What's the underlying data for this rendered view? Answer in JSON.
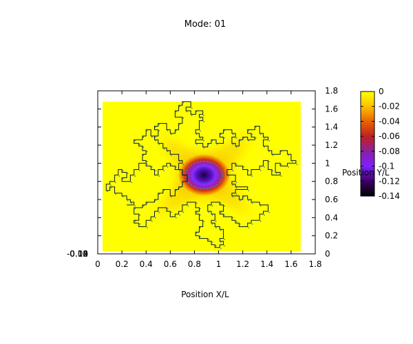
{
  "chart_data": {
    "type": "heatmap",
    "title": "Mode: 01",
    "xlabel": "Position X/L",
    "ylabel": "Position Y/L",
    "xlim": [
      0,
      1.8
    ],
    "ylim": [
      0,
      1.8
    ],
    "x_ticks": [
      "0",
      "0.2",
      "0.4",
      "0.6",
      "0.8",
      "1",
      "1.2",
      "1.4",
      "1.6",
      "1.8"
    ],
    "y_ticks": [
      "0",
      "0.2",
      "0.4",
      "0.6",
      "0.8",
      "1",
      "1.2",
      "1.4",
      "1.6",
      "1.8"
    ],
    "overlapping_tick_labels": [
      "-0.14",
      "-0.12",
      "-0.10",
      "-0.08"
    ],
    "colorbar": {
      "range": [
        -0.14,
        0
      ],
      "ticks": [
        "0",
        "-0.02",
        "-0.04",
        "-0.06",
        "-0.08",
        "-0.1",
        "-0.12",
        "-0.14"
      ],
      "colors": [
        "#000000",
        "#3a0060",
        "#7f1fff",
        "#8a1fa8",
        "#c02020",
        "#e86000",
        "#ffc200",
        "#ffff00"
      ]
    },
    "field": {
      "domain_x": [
        0.04,
        1.68
      ],
      "domain_y": [
        0.03,
        1.68
      ],
      "min_value": -0.14,
      "min_location": [
        0.88,
        0.87
      ],
      "background_value": 0
    },
    "boundary_polyline_xy": [
      [
        0.67,
        1.64
      ],
      [
        0.7,
        1.64
      ],
      [
        0.7,
        1.68
      ],
      [
        0.77,
        1.68
      ],
      [
        0.77,
        1.62
      ],
      [
        0.73,
        1.62
      ],
      [
        0.73,
        1.58
      ],
      [
        0.77,
        1.58
      ],
      [
        0.77,
        1.54
      ],
      [
        0.81,
        1.54
      ],
      [
        0.81,
        1.58
      ],
      [
        0.87,
        1.58
      ],
      [
        0.87,
        1.54
      ],
      [
        0.84,
        1.54
      ],
      [
        0.84,
        1.51
      ],
      [
        0.87,
        1.51
      ],
      [
        0.87,
        1.47
      ],
      [
        0.84,
        1.47
      ],
      [
        0.84,
        1.37
      ],
      [
        0.81,
        1.37
      ],
      [
        0.81,
        1.33
      ],
      [
        0.84,
        1.33
      ],
      [
        0.84,
        1.29
      ],
      [
        0.87,
        1.29
      ],
      [
        0.87,
        1.26
      ],
      [
        0.81,
        1.26
      ],
      [
        0.81,
        1.22
      ],
      [
        0.87,
        1.22
      ],
      [
        0.87,
        1.18
      ],
      [
        0.91,
        1.18
      ],
      [
        0.91,
        1.22
      ],
      [
        0.94,
        1.22
      ],
      [
        0.94,
        1.26
      ],
      [
        0.98,
        1.26
      ],
      [
        0.98,
        1.22
      ],
      [
        1.04,
        1.22
      ],
      [
        1.04,
        1.29
      ],
      [
        1.01,
        1.29
      ],
      [
        1.01,
        1.33
      ],
      [
        1.04,
        1.33
      ],
      [
        1.04,
        1.37
      ],
      [
        1.11,
        1.37
      ],
      [
        1.11,
        1.33
      ],
      [
        1.14,
        1.33
      ],
      [
        1.14,
        1.29
      ],
      [
        1.11,
        1.29
      ],
      [
        1.11,
        1.22
      ],
      [
        1.14,
        1.22
      ],
      [
        1.14,
        1.19
      ],
      [
        1.17,
        1.19
      ],
      [
        1.17,
        1.26
      ],
      [
        1.2,
        1.26
      ],
      [
        1.2,
        1.29
      ],
      [
        1.24,
        1.29
      ],
      [
        1.24,
        1.26
      ],
      [
        1.3,
        1.26
      ],
      [
        1.3,
        1.29
      ],
      [
        1.27,
        1.29
      ],
      [
        1.27,
        1.33
      ],
      [
        1.24,
        1.33
      ],
      [
        1.24,
        1.37
      ],
      [
        1.3,
        1.37
      ],
      [
        1.3,
        1.41
      ],
      [
        1.34,
        1.41
      ],
      [
        1.34,
        1.33
      ],
      [
        1.37,
        1.33
      ],
      [
        1.37,
        1.29
      ],
      [
        1.41,
        1.29
      ],
      [
        1.41,
        1.26
      ],
      [
        1.37,
        1.26
      ],
      [
        1.37,
        1.19
      ],
      [
        1.41,
        1.19
      ],
      [
        1.41,
        1.14
      ],
      [
        1.44,
        1.14
      ],
      [
        1.44,
        1.1
      ],
      [
        1.51,
        1.1
      ],
      [
        1.51,
        1.14
      ],
      [
        1.57,
        1.14
      ],
      [
        1.57,
        1.1
      ],
      [
        1.6,
        1.1
      ],
      [
        1.6,
        1.03
      ],
      [
        1.64,
        1.03
      ],
      [
        1.64,
        1.0
      ],
      [
        1.57,
        1.0
      ],
      [
        1.57,
        0.97
      ],
      [
        1.51,
        0.97
      ],
      [
        1.51,
        1.0
      ],
      [
        1.47,
        1.0
      ],
      [
        1.47,
        0.9
      ],
      [
        1.51,
        0.9
      ],
      [
        1.51,
        0.87
      ],
      [
        1.44,
        0.87
      ],
      [
        1.44,
        0.93
      ],
      [
        1.41,
        0.93
      ],
      [
        1.41,
        1.03
      ],
      [
        1.37,
        1.03
      ],
      [
        1.37,
        0.97
      ],
      [
        1.34,
        0.97
      ],
      [
        1.34,
        0.93
      ],
      [
        1.27,
        0.93
      ],
      [
        1.27,
        0.87
      ],
      [
        1.24,
        0.87
      ],
      [
        1.24,
        0.93
      ],
      [
        1.2,
        0.93
      ],
      [
        1.2,
        0.97
      ],
      [
        1.14,
        0.97
      ],
      [
        1.14,
        1.0
      ],
      [
        1.11,
        1.0
      ],
      [
        1.11,
        0.93
      ],
      [
        1.07,
        0.93
      ],
      [
        1.07,
        0.87
      ],
      [
        1.14,
        0.87
      ],
      [
        1.14,
        0.8
      ],
      [
        1.11,
        0.8
      ],
      [
        1.11,
        0.77
      ],
      [
        1.14,
        0.77
      ],
      [
        1.14,
        0.74
      ],
      [
        1.24,
        0.74
      ],
      [
        1.24,
        0.71
      ],
      [
        1.14,
        0.71
      ],
      [
        1.14,
        0.67
      ],
      [
        1.11,
        0.67
      ],
      [
        1.11,
        0.64
      ],
      [
        1.17,
        0.64
      ],
      [
        1.17,
        0.6
      ],
      [
        1.2,
        0.6
      ],
      [
        1.2,
        0.64
      ],
      [
        1.24,
        0.64
      ],
      [
        1.24,
        0.6
      ],
      [
        1.27,
        0.6
      ],
      [
        1.27,
        0.57
      ],
      [
        1.34,
        0.57
      ],
      [
        1.34,
        0.54
      ],
      [
        1.41,
        0.54
      ],
      [
        1.41,
        0.47
      ],
      [
        1.37,
        0.47
      ],
      [
        1.37,
        0.44
      ],
      [
        1.34,
        0.44
      ],
      [
        1.34,
        0.37
      ],
      [
        1.27,
        0.37
      ],
      [
        1.27,
        0.34
      ],
      [
        1.24,
        0.34
      ],
      [
        1.24,
        0.3
      ],
      [
        1.17,
        0.3
      ],
      [
        1.17,
        0.34
      ],
      [
        1.14,
        0.34
      ],
      [
        1.14,
        0.37
      ],
      [
        1.11,
        0.37
      ],
      [
        1.11,
        0.41
      ],
      [
        1.04,
        0.41
      ],
      [
        1.04,
        0.44
      ],
      [
        1.01,
        0.44
      ],
      [
        1.01,
        0.47
      ],
      [
        1.04,
        0.47
      ],
      [
        1.04,
        0.54
      ],
      [
        1.01,
        0.54
      ],
      [
        1.01,
        0.57
      ],
      [
        0.94,
        0.57
      ],
      [
        0.94,
        0.54
      ],
      [
        0.91,
        0.54
      ],
      [
        0.91,
        0.47
      ],
      [
        0.94,
        0.47
      ],
      [
        0.94,
        0.44
      ],
      [
        0.97,
        0.44
      ],
      [
        0.97,
        0.37
      ],
      [
        0.94,
        0.37
      ],
      [
        0.94,
        0.34
      ],
      [
        0.97,
        0.34
      ],
      [
        0.97,
        0.3
      ],
      [
        1.01,
        0.3
      ],
      [
        1.01,
        0.27
      ],
      [
        1.04,
        0.27
      ],
      [
        1.04,
        0.17
      ],
      [
        1.01,
        0.17
      ],
      [
        1.01,
        0.14
      ],
      [
        1.04,
        0.14
      ],
      [
        1.04,
        0.1
      ],
      [
        1.01,
        0.1
      ],
      [
        1.01,
        0.07
      ],
      [
        0.97,
        0.07
      ],
      [
        0.97,
        0.1
      ],
      [
        0.94,
        0.1
      ],
      [
        0.94,
        0.14
      ],
      [
        0.91,
        0.14
      ],
      [
        0.91,
        0.17
      ],
      [
        0.84,
        0.17
      ],
      [
        0.84,
        0.2
      ],
      [
        0.81,
        0.2
      ],
      [
        0.81,
        0.24
      ],
      [
        0.84,
        0.24
      ],
      [
        0.84,
        0.3
      ],
      [
        0.87,
        0.3
      ],
      [
        0.87,
        0.37
      ],
      [
        0.84,
        0.37
      ],
      [
        0.84,
        0.44
      ],
      [
        0.81,
        0.44
      ],
      [
        0.81,
        0.47
      ],
      [
        0.84,
        0.47
      ],
      [
        0.84,
        0.51
      ],
      [
        0.81,
        0.51
      ],
      [
        0.81,
        0.57
      ],
      [
        0.74,
        0.57
      ],
      [
        0.74,
        0.54
      ],
      [
        0.7,
        0.54
      ],
      [
        0.7,
        0.47
      ],
      [
        0.67,
        0.47
      ],
      [
        0.67,
        0.44
      ],
      [
        0.64,
        0.44
      ],
      [
        0.64,
        0.41
      ],
      [
        0.6,
        0.41
      ],
      [
        0.6,
        0.47
      ],
      [
        0.57,
        0.47
      ],
      [
        0.57,
        0.51
      ],
      [
        0.5,
        0.51
      ],
      [
        0.5,
        0.47
      ],
      [
        0.47,
        0.47
      ],
      [
        0.47,
        0.41
      ],
      [
        0.44,
        0.41
      ],
      [
        0.44,
        0.37
      ],
      [
        0.4,
        0.37
      ],
      [
        0.4,
        0.3
      ],
      [
        0.34,
        0.3
      ],
      [
        0.34,
        0.34
      ],
      [
        0.3,
        0.34
      ],
      [
        0.3,
        0.37
      ],
      [
        0.34,
        0.37
      ],
      [
        0.34,
        0.44
      ],
      [
        0.3,
        0.44
      ],
      [
        0.3,
        0.51
      ],
      [
        0.37,
        0.51
      ],
      [
        0.37,
        0.54
      ],
      [
        0.4,
        0.54
      ],
      [
        0.4,
        0.57
      ],
      [
        0.47,
        0.57
      ],
      [
        0.47,
        0.6
      ],
      [
        0.5,
        0.6
      ],
      [
        0.5,
        0.67
      ],
      [
        0.54,
        0.67
      ],
      [
        0.54,
        0.71
      ],
      [
        0.6,
        0.71
      ],
      [
        0.6,
        0.64
      ],
      [
        0.64,
        0.64
      ],
      [
        0.64,
        0.71
      ],
      [
        0.67,
        0.71
      ],
      [
        0.67,
        0.74
      ],
      [
        0.7,
        0.74
      ],
      [
        0.7,
        0.8
      ],
      [
        0.74,
        0.8
      ],
      [
        0.74,
        0.87
      ],
      [
        0.7,
        0.87
      ],
      [
        0.7,
        0.93
      ],
      [
        0.64,
        0.93
      ],
      [
        0.64,
        0.97
      ],
      [
        0.6,
        0.97
      ],
      [
        0.6,
        1.0
      ],
      [
        0.57,
        1.0
      ],
      [
        0.57,
        0.97
      ],
      [
        0.54,
        0.97
      ],
      [
        0.54,
        0.93
      ],
      [
        0.5,
        0.93
      ],
      [
        0.5,
        0.87
      ],
      [
        0.47,
        0.87
      ],
      [
        0.47,
        0.93
      ],
      [
        0.44,
        0.93
      ],
      [
        0.44,
        0.97
      ],
      [
        0.4,
        0.97
      ],
      [
        0.4,
        1.0
      ],
      [
        0.34,
        1.0
      ],
      [
        0.34,
        0.93
      ],
      [
        0.3,
        0.93
      ],
      [
        0.3,
        0.87
      ],
      [
        0.27,
        0.87
      ],
      [
        0.27,
        0.8
      ],
      [
        0.2,
        0.8
      ],
      [
        0.2,
        0.84
      ],
      [
        0.24,
        0.84
      ],
      [
        0.24,
        0.9
      ],
      [
        0.2,
        0.9
      ],
      [
        0.2,
        0.93
      ],
      [
        0.17,
        0.93
      ],
      [
        0.17,
        0.87
      ],
      [
        0.14,
        0.87
      ],
      [
        0.14,
        0.8
      ],
      [
        0.1,
        0.8
      ],
      [
        0.1,
        0.77
      ],
      [
        0.07,
        0.77
      ],
      [
        0.07,
        0.7
      ],
      [
        0.1,
        0.7
      ],
      [
        0.1,
        0.74
      ],
      [
        0.14,
        0.74
      ],
      [
        0.14,
        0.67
      ],
      [
        0.2,
        0.67
      ],
      [
        0.2,
        0.64
      ],
      [
        0.24,
        0.64
      ],
      [
        0.24,
        0.6
      ],
      [
        0.27,
        0.6
      ],
      [
        0.27,
        0.57
      ],
      [
        0.3,
        0.57
      ],
      [
        0.3,
        0.54
      ],
      [
        0.24,
        0.54
      ]
    ],
    "boundary_upper_branch_xy": [
      [
        0.74,
        0.8
      ],
      [
        0.74,
        0.87
      ],
      [
        0.7,
        0.87
      ],
      [
        0.7,
        0.93
      ],
      [
        0.67,
        0.93
      ],
      [
        0.67,
        1.0
      ],
      [
        0.7,
        1.0
      ],
      [
        0.7,
        1.03
      ],
      [
        0.67,
        1.03
      ],
      [
        0.67,
        1.1
      ],
      [
        0.6,
        1.1
      ],
      [
        0.6,
        1.14
      ],
      [
        0.57,
        1.14
      ],
      [
        0.57,
        1.17
      ],
      [
        0.54,
        1.17
      ],
      [
        0.54,
        1.22
      ],
      [
        0.5,
        1.22
      ],
      [
        0.5,
        1.26
      ],
      [
        0.47,
        1.26
      ],
      [
        0.47,
        1.3
      ],
      [
        0.44,
        1.3
      ],
      [
        0.44,
        1.37
      ],
      [
        0.4,
        1.37
      ],
      [
        0.4,
        1.3
      ],
      [
        0.37,
        1.3
      ],
      [
        0.37,
        1.26
      ],
      [
        0.3,
        1.26
      ],
      [
        0.3,
        1.22
      ],
      [
        0.34,
        1.22
      ],
      [
        0.34,
        1.19
      ],
      [
        0.37,
        1.19
      ],
      [
        0.37,
        1.14
      ],
      [
        0.4,
        1.14
      ],
      [
        0.4,
        1.1
      ],
      [
        0.37,
        1.1
      ],
      [
        0.37,
        1.03
      ],
      [
        0.4,
        1.03
      ],
      [
        0.4,
        1.0
      ]
    ],
    "boundary_upper_stub_xy": [
      [
        0.47,
        1.3
      ],
      [
        0.5,
        1.3
      ],
      [
        0.5,
        1.37
      ],
      [
        0.47,
        1.37
      ],
      [
        0.47,
        1.41
      ],
      [
        0.5,
        1.41
      ],
      [
        0.5,
        1.44
      ],
      [
        0.57,
        1.44
      ],
      [
        0.57,
        1.37
      ],
      [
        0.6,
        1.37
      ],
      [
        0.6,
        1.33
      ],
      [
        0.64,
        1.33
      ],
      [
        0.64,
        1.37
      ],
      [
        0.67,
        1.37
      ],
      [
        0.67,
        1.44
      ],
      [
        0.7,
        1.44
      ],
      [
        0.7,
        1.51
      ],
      [
        0.64,
        1.51
      ],
      [
        0.64,
        1.58
      ],
      [
        0.67,
        1.58
      ],
      [
        0.67,
        1.64
      ]
    ]
  }
}
